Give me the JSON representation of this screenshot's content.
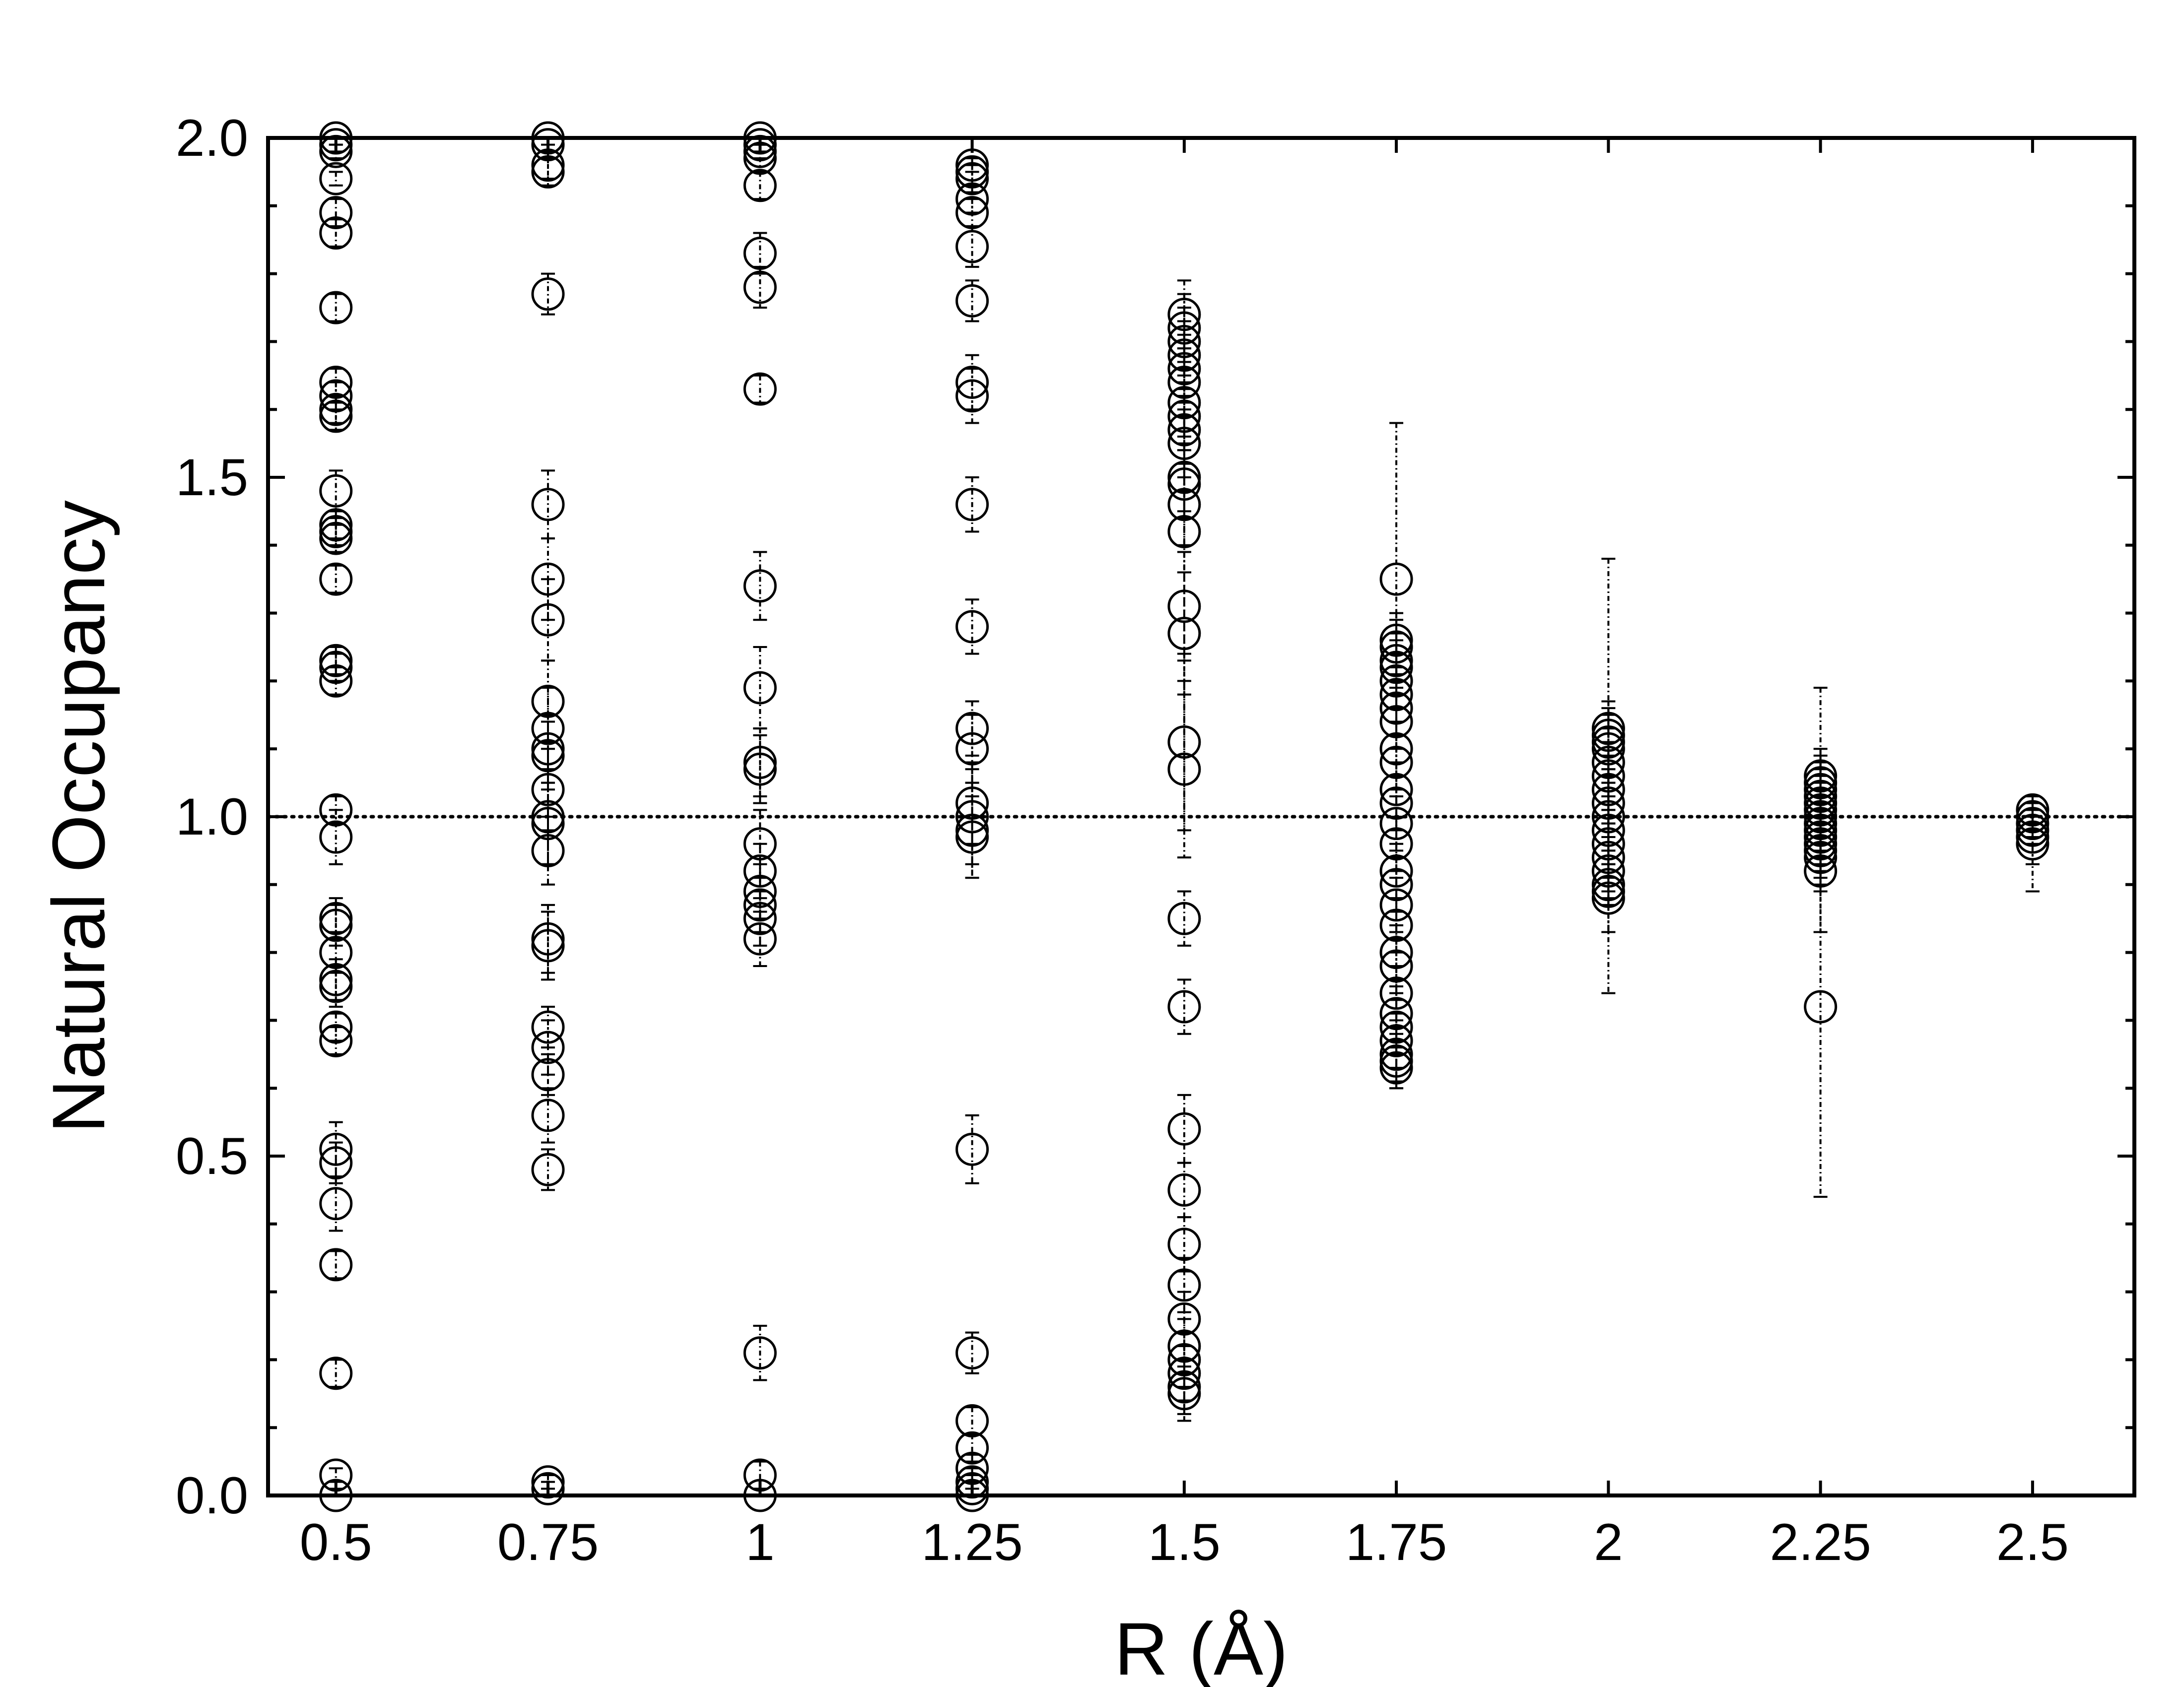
{
  "chart_data": {
    "type": "scatter",
    "title": "",
    "xlabel": "R (Å)",
    "ylabel": "Natural Occupancy",
    "xlim": [
      0.42,
      2.62
    ],
    "ylim": [
      0,
      2
    ],
    "x_ticks": [
      0.5,
      0.75,
      1,
      1.25,
      1.5,
      1.75,
      2,
      2.25,
      2.5
    ],
    "x_tick_labels": [
      "0.5",
      "0.75",
      "1",
      "1.25",
      "1.5",
      "1.75",
      "2",
      "2.25",
      "2.5"
    ],
    "y_ticks": [
      0,
      0.5,
      1,
      1.5,
      2
    ],
    "y_tick_labels": [
      "0.0",
      "0.5",
      "1.0",
      "1.5",
      "2.0"
    ],
    "reference_line": {
      "y": 1.0,
      "style": "dotted"
    },
    "grid": false,
    "legend": "none",
    "marker": "open-circle",
    "groups": [
      {
        "x": 0.5,
        "values": [
          2.0,
          1.99,
          1.98,
          1.94,
          1.89,
          1.86,
          1.75,
          1.64,
          1.62,
          1.6,
          1.59,
          1.48,
          1.43,
          1.42,
          1.41,
          1.35,
          1.23,
          1.22,
          1.2,
          1.01,
          0.97,
          0.85,
          0.84,
          0.8,
          0.76,
          0.75,
          0.69,
          0.67,
          0.51,
          0.49,
          0.43,
          0.34,
          0.18,
          0.03,
          0.0
        ],
        "errors": [
          0.01,
          0.01,
          0.01,
          0.01,
          0.02,
          0.02,
          0.02,
          0.02,
          0.02,
          0.02,
          0.02,
          0.03,
          0.02,
          0.02,
          0.02,
          0.02,
          0.02,
          0.02,
          0.02,
          0.02,
          0.04,
          0.03,
          0.03,
          0.03,
          0.03,
          0.03,
          0.02,
          0.02,
          0.04,
          0.03,
          0.04,
          0.02,
          0.02,
          0.01,
          0.01
        ]
      },
      {
        "x": 0.75,
        "values": [
          2.0,
          1.99,
          1.96,
          1.95,
          1.77,
          1.46,
          1.35,
          1.29,
          1.17,
          1.13,
          1.1,
          1.09,
          1.04,
          1.0,
          0.99,
          0.95,
          0.82,
          0.81,
          0.69,
          0.66,
          0.62,
          0.56,
          0.48,
          0.02,
          0.01
        ],
        "errors": [
          0.01,
          0.01,
          0.02,
          0.02,
          0.03,
          0.05,
          0.06,
          0.06,
          0.06,
          0.06,
          0.05,
          0.05,
          0.06,
          0.07,
          0.06,
          0.05,
          0.05,
          0.05,
          0.03,
          0.04,
          0.03,
          0.04,
          0.03,
          0.01,
          0.01
        ]
      },
      {
        "x": 1.0,
        "values": [
          2.0,
          1.99,
          1.98,
          1.97,
          1.93,
          1.83,
          1.78,
          1.63,
          1.34,
          1.19,
          1.08,
          1.07,
          0.96,
          0.92,
          0.89,
          0.87,
          0.85,
          0.82,
          0.21,
          0.03,
          0.0
        ],
        "errors": [
          0.01,
          0.01,
          0.01,
          0.02,
          0.02,
          0.03,
          0.03,
          0.02,
          0.05,
          0.06,
          0.05,
          0.05,
          0.05,
          0.04,
          0.04,
          0.04,
          0.04,
          0.04,
          0.04,
          0.02,
          0.01
        ]
      },
      {
        "x": 1.25,
        "values": [
          1.96,
          1.95,
          1.94,
          1.91,
          1.89,
          1.84,
          1.76,
          1.64,
          1.62,
          1.46,
          1.28,
          1.13,
          1.1,
          1.02,
          1.0,
          0.98,
          0.97,
          0.51,
          0.21,
          0.11,
          0.07,
          0.04,
          0.02,
          0.01,
          0.0
        ],
        "errors": [
          0.01,
          0.02,
          0.02,
          0.02,
          0.02,
          0.03,
          0.03,
          0.04,
          0.04,
          0.04,
          0.04,
          0.04,
          0.05,
          0.06,
          0.07,
          0.07,
          0.06,
          0.05,
          0.03,
          0.02,
          0.02,
          0.02,
          0.02,
          0.02,
          0.01
        ]
      },
      {
        "x": 1.5,
        "values": [
          1.74,
          1.72,
          1.7,
          1.68,
          1.66,
          1.64,
          1.61,
          1.59,
          1.57,
          1.55,
          1.5,
          1.49,
          1.46,
          1.42,
          1.31,
          1.27,
          1.11,
          1.07,
          0.85,
          0.72,
          0.54,
          0.45,
          0.37,
          0.31,
          0.26,
          0.22,
          0.2,
          0.18,
          0.16,
          0.15
        ],
        "errors": [
          0.05,
          0.05,
          0.05,
          0.05,
          0.05,
          0.05,
          0.05,
          0.05,
          0.05,
          0.05,
          0.05,
          0.05,
          0.06,
          0.06,
          0.08,
          0.09,
          0.13,
          0.13,
          0.04,
          0.04,
          0.05,
          0.04,
          0.04,
          0.04,
          0.04,
          0.04,
          0.04,
          0.04,
          0.04,
          0.04
        ]
      },
      {
        "x": 1.75,
        "values": [
          1.35,
          1.26,
          1.25,
          1.23,
          1.22,
          1.2,
          1.18,
          1.16,
          1.14,
          1.1,
          1.08,
          1.04,
          1.02,
          0.99,
          0.96,
          0.92,
          0.9,
          0.87,
          0.84,
          0.8,
          0.78,
          0.74,
          0.71,
          0.69,
          0.67,
          0.65,
          0.64,
          0.63
        ],
        "errors": [
          0.23,
          0.04,
          0.04,
          0.04,
          0.04,
          0.04,
          0.04,
          0.04,
          0.04,
          0.04,
          0.04,
          0.04,
          0.04,
          0.04,
          0.04,
          0.04,
          0.04,
          0.04,
          0.04,
          0.04,
          0.04,
          0.04,
          0.04,
          0.04,
          0.04,
          0.04,
          0.04,
          0.03
        ]
      },
      {
        "x": 2.0,
        "values": [
          1.13,
          1.12,
          1.11,
          1.1,
          1.08,
          1.06,
          1.04,
          1.02,
          1.0,
          0.98,
          0.96,
          0.94,
          0.92,
          0.9,
          0.89,
          0.88
        ],
        "errors": [
          0.25,
          0.05,
          0.05,
          0.05,
          0.05,
          0.05,
          0.05,
          0.05,
          0.05,
          0.05,
          0.05,
          0.05,
          0.05,
          0.16,
          0.06,
          0.05
        ]
      },
      {
        "x": 2.25,
        "values": [
          1.06,
          1.05,
          1.04,
          1.03,
          1.02,
          1.01,
          1.0,
          0.99,
          0.98,
          0.97,
          0.96,
          0.95,
          0.94,
          0.92,
          0.72
        ],
        "errors": [
          0.13,
          0.05,
          0.05,
          0.05,
          0.05,
          0.05,
          0.05,
          0.05,
          0.05,
          0.05,
          0.05,
          0.05,
          0.05,
          0.09,
          0.28
        ]
      },
      {
        "x": 2.5,
        "values": [
          1.01,
          1.0,
          0.99,
          0.98,
          0.97,
          0.96
        ],
        "errors": [
          0.02,
          0.02,
          0.02,
          0.02,
          0.04,
          0.07
        ]
      }
    ]
  }
}
